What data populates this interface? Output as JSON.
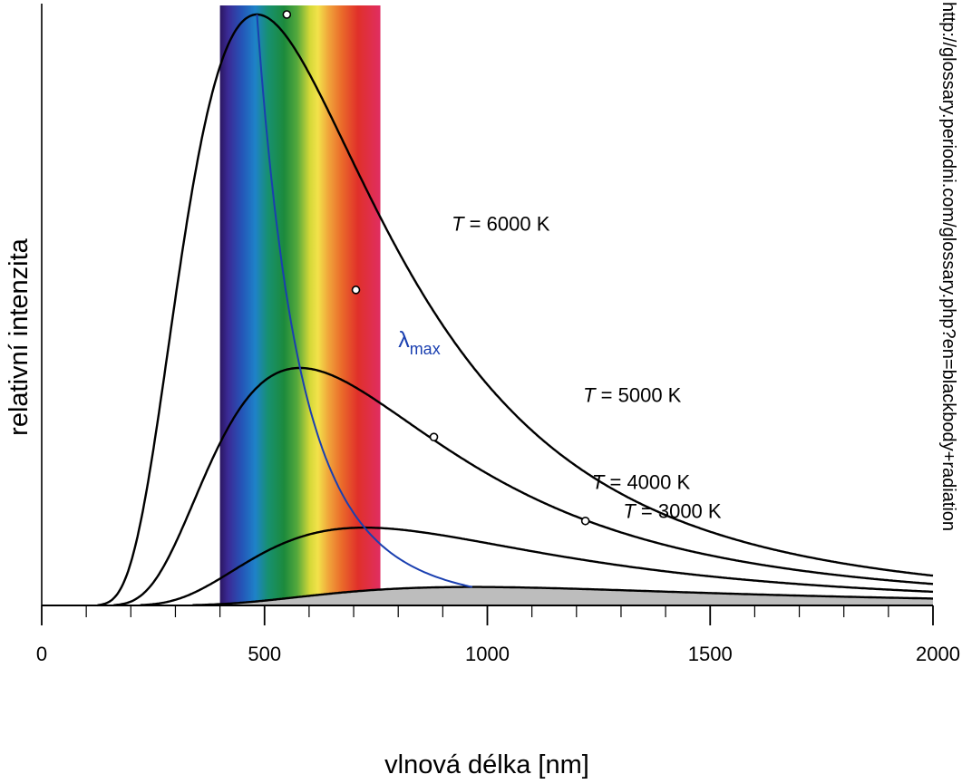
{
  "chart_data": {
    "type": "line",
    "xlabel": "vlnová délka [nm]",
    "ylabel": "relativní intenzita",
    "xlim": [
      0,
      2000
    ],
    "x_ticks": [
      0,
      500,
      1000,
      1500,
      2000
    ],
    "x_tick_labels": [
      "0",
      "500",
      "1000",
      "1500",
      "2000"
    ],
    "minor_tick_step": 100,
    "visible_spectrum_nm": [
      400,
      760
    ],
    "y_ticks_shown": false,
    "grid": false,
    "curve_color": "#000000",
    "shaded_curve_fill": "#bdbdbd",
    "wien_line_color": "#1a3fb0",
    "series": [
      {
        "temperature_k": 6000,
        "label_var": "T",
        "label_rest": " = 6000 K",
        "peak_x_nm": 550,
        "peak_y_rel": 1.0
      },
      {
        "temperature_k": 5000,
        "label_var": "T",
        "label_rest": " = 5000 K",
        "peak_x_nm": 705,
        "peak_y_rel": 0.534
      },
      {
        "temperature_k": 4000,
        "label_var": "T",
        "label_rest": " = 4000 K",
        "peak_x_nm": 880,
        "peak_y_rel": 0.285
      },
      {
        "temperature_k": 3000,
        "label_var": "T",
        "label_rest": " = 3000 K",
        "peak_x_nm": 1220,
        "peak_y_rel": 0.143
      }
    ],
    "wien_label_main": "λ",
    "wien_label_sub": "max"
  },
  "source_credit": "http://glossary.periodni.com/glossary.php?en=blackbody+radiation"
}
